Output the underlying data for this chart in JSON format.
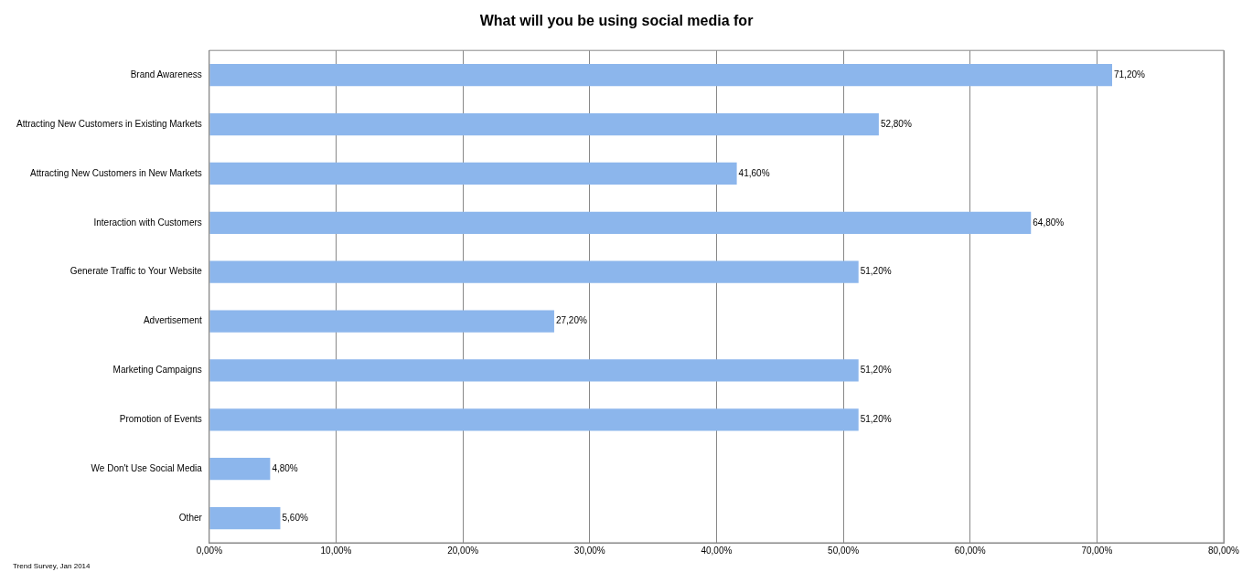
{
  "chart_data": {
    "type": "bar",
    "orientation": "horizontal",
    "title": "What will you be using social media for",
    "categories": [
      "Brand Awareness",
      "Attracting New Customers in Existing Markets",
      "Attracting New Customers in New Markets",
      "Interaction with Customers",
      "Generate Traffic to Your Website",
      "Advertisement",
      "Marketing Campaigns",
      "Promotion of Events",
      "We Don't Use Social Media",
      "Other"
    ],
    "values": [
      71.2,
      52.8,
      41.6,
      64.8,
      51.2,
      27.2,
      51.2,
      51.2,
      4.8,
      5.6
    ],
    "value_labels": [
      "71,20%",
      "52,80%",
      "41,60%",
      "64,80%",
      "51,20%",
      "27,20%",
      "51,20%",
      "51,20%",
      "4,80%",
      "5,60%"
    ],
    "color": "#8cb6ec",
    "xlim": [
      0,
      80
    ],
    "xticks": [
      {
        "value": 0,
        "label": "0,00%"
      },
      {
        "value": 10,
        "label": "10,00%"
      },
      {
        "value": 20,
        "label": "20,00%"
      },
      {
        "value": 30,
        "label": "30,00%"
      },
      {
        "value": 40,
        "label": "40,00%"
      },
      {
        "value": 50,
        "label": "50,00%"
      },
      {
        "value": 60,
        "label": "60,00%"
      },
      {
        "value": 70,
        "label": "70,00%"
      },
      {
        "value": 80,
        "label": "80,00%"
      }
    ],
    "grid": "x",
    "legend": false,
    "annotations": [
      "Trend Survey, Jan 2014"
    ]
  }
}
